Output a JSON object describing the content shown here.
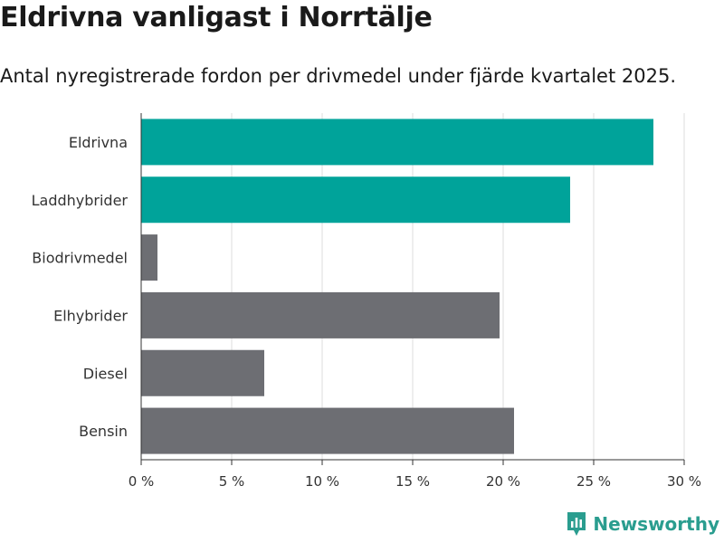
{
  "header": {
    "title": "Eldrivna vanligast i Norrtälje",
    "subtitle": "Antal nyregistrerade fordon per drivmedel under fjärde kvartalet 2025."
  },
  "brand": {
    "name": "Newsworthy",
    "icon": "newsworthy-logo-icon"
  },
  "colors": {
    "highlight": "#00a39a",
    "default": "#6d6e73",
    "grid": "#dcdcdc",
    "axis": "#333333",
    "brand": "#2a9d8f"
  },
  "chart_data": {
    "type": "bar",
    "orientation": "horizontal",
    "title": "Eldrivna vanligast i Norrtälje",
    "subtitle": "Antal nyregistrerade fordon per drivmedel under fjärde kvartalet 2025.",
    "xlabel": "",
    "ylabel": "",
    "categories": [
      "Eldrivna",
      "Laddhybrider",
      "Biodrivmedel",
      "Elhybrider",
      "Diesel",
      "Bensin"
    ],
    "values": [
      28.3,
      23.7,
      0.9,
      19.8,
      6.8,
      20.6
    ],
    "highlighted": [
      true,
      true,
      false,
      false,
      false,
      false
    ],
    "unit": "%",
    "xlim": [
      0,
      30
    ],
    "ticks": [
      0,
      5,
      10,
      15,
      20,
      25,
      30
    ],
    "tick_labels": [
      "0 %",
      "5 %",
      "10 %",
      "15 %",
      "20 %",
      "25 %",
      "30 %"
    ],
    "grid": true,
    "legend": "none"
  }
}
